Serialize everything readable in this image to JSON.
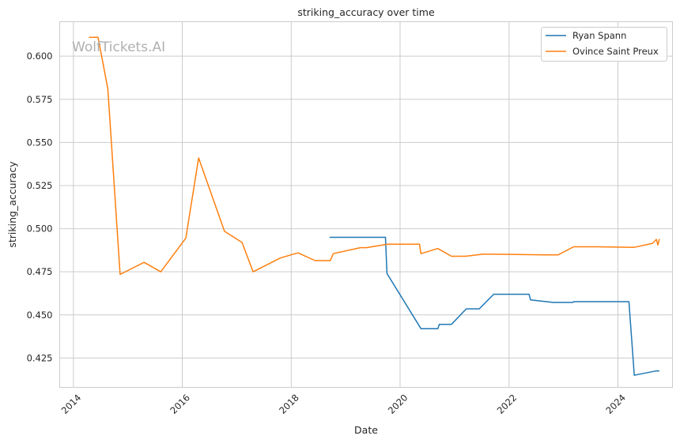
{
  "watermark": "WolfTickets.AI",
  "chart_data": {
    "type": "line",
    "title": "striking_accuracy over time",
    "xlabel": "Date",
    "ylabel": "striking_accuracy",
    "xlim": [
      "2013-10-01",
      "2025-01-01"
    ],
    "ylim": [
      0.408,
      0.62
    ],
    "x_ticks": [
      "2014-01-01",
      "2016-01-01",
      "2018-01-01",
      "2020-01-01",
      "2022-01-01",
      "2024-01-01"
    ],
    "x_tick_labels": [
      "2014",
      "2016",
      "2018",
      "2020",
      "2022",
      "2024"
    ],
    "y_ticks": [
      0.425,
      0.45,
      0.475,
      0.5,
      0.525,
      0.55,
      0.575,
      0.6
    ],
    "y_tick_labels": [
      "0.425",
      "0.450",
      "0.475",
      "0.500",
      "0.525",
      "0.550",
      "0.575",
      "0.600"
    ],
    "grid": true,
    "legend_position": "top-right",
    "series": [
      {
        "name": "Ryan Spann",
        "color": "#1f77b4",
        "points": [
          [
            "2018-09-15",
            0.495
          ],
          [
            "2019-09-25",
            0.495
          ],
          [
            "2019-10-05",
            0.474
          ],
          [
            "2020-05-20",
            0.442
          ],
          [
            "2020-09-10",
            0.442
          ],
          [
            "2020-09-20",
            0.4445
          ],
          [
            "2020-12-10",
            0.4445
          ],
          [
            "2021-03-20",
            0.4535
          ],
          [
            "2021-06-15",
            0.4535
          ],
          [
            "2021-09-20",
            0.462
          ],
          [
            "2022-05-15",
            0.462
          ],
          [
            "2022-05-25",
            0.4587
          ],
          [
            "2022-10-25",
            0.4572
          ],
          [
            "2023-03-01",
            0.4572
          ],
          [
            "2023-03-15",
            0.4577
          ],
          [
            "2024-03-15",
            0.4577
          ],
          [
            "2024-04-20",
            0.415
          ],
          [
            "2024-09-10",
            0.4175
          ],
          [
            "2024-10-05",
            0.4175
          ]
        ]
      },
      {
        "name": "Ovince Saint Preux",
        "color": "#ff7f0e",
        "points": [
          [
            "2014-04-15",
            0.611
          ],
          [
            "2014-06-15",
            0.611
          ],
          [
            "2014-08-20",
            0.581
          ],
          [
            "2014-11-10",
            0.4735
          ],
          [
            "2015-04-20",
            0.4805
          ],
          [
            "2015-08-10",
            0.475
          ],
          [
            "2016-01-25",
            0.4945
          ],
          [
            "2016-04-20",
            0.541
          ],
          [
            "2016-10-10",
            0.4985
          ],
          [
            "2017-02-05",
            0.492
          ],
          [
            "2017-04-20",
            0.475
          ],
          [
            "2017-10-20",
            0.483
          ],
          [
            "2018-02-15",
            0.486
          ],
          [
            "2018-06-10",
            0.4815
          ],
          [
            "2018-09-20",
            0.4815
          ],
          [
            "2018-10-10",
            0.4855
          ],
          [
            "2019-04-10",
            0.489
          ],
          [
            "2019-05-20",
            0.489
          ],
          [
            "2019-10-10",
            0.491
          ],
          [
            "2020-05-10",
            0.491
          ],
          [
            "2020-05-20",
            0.4855
          ],
          [
            "2020-09-10",
            0.4885
          ],
          [
            "2020-12-10",
            0.484
          ],
          [
            "2021-03-15",
            0.484
          ],
          [
            "2021-07-10",
            0.4852
          ],
          [
            "2021-09-20",
            0.4852
          ],
          [
            "2022-08-20",
            0.4848
          ],
          [
            "2022-11-25",
            0.4848
          ],
          [
            "2023-03-10",
            0.4895
          ],
          [
            "2023-08-15",
            0.4895
          ],
          [
            "2024-04-20",
            0.4892
          ],
          [
            "2024-08-20",
            0.4915
          ],
          [
            "2024-09-15",
            0.4938
          ],
          [
            "2024-09-25",
            0.4905
          ],
          [
            "2024-10-05",
            0.494
          ]
        ]
      }
    ]
  }
}
